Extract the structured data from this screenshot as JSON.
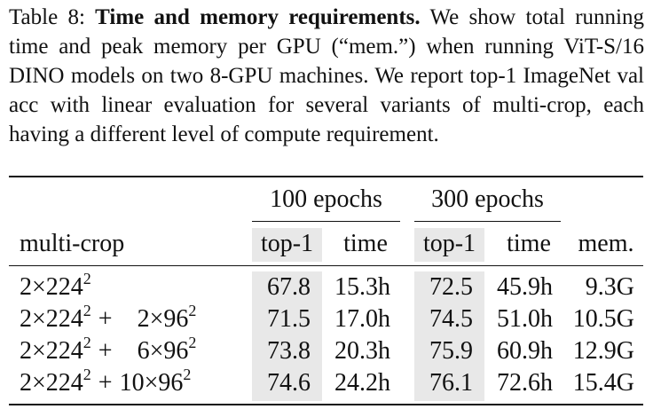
{
  "caption": {
    "label": "Table 8:",
    "title": "Time and memory requirements.",
    "text": "We show total running time and peak memory per GPU (“mem.”) when running ViT-S/16 DINO models on two 8-GPU machines. We report top-1 ImageNet val acc with linear evaluation for several variants of multi-crop, each having a different level of compute requirement."
  },
  "table": {
    "group_headers": [
      "100 epochs",
      "300 epochs"
    ],
    "row_header": "multi-crop",
    "columns": [
      "top-1",
      "time",
      "top-1",
      "time",
      "mem."
    ],
    "rows": [
      {
        "label": {
          "a_mult": "2",
          "a_res": "224",
          "exp": "2",
          "plus": "",
          "b_mult": "",
          "b_res": "",
          "b_exp": ""
        },
        "cells": [
          "67.8",
          "15.3h",
          "72.5",
          "45.9h",
          "9.3G"
        ]
      },
      {
        "label": {
          "a_mult": "2",
          "a_res": "224",
          "exp": "2",
          "plus": "+",
          "b_mult": "2",
          "b_res": "96",
          "b_exp": "2"
        },
        "cells": [
          "71.5",
          "17.0h",
          "74.5",
          "51.0h",
          "10.5G"
        ]
      },
      {
        "label": {
          "a_mult": "2",
          "a_res": "224",
          "exp": "2",
          "plus": "+",
          "b_mult": "6",
          "b_res": "96",
          "b_exp": "2"
        },
        "cells": [
          "73.8",
          "20.3h",
          "75.9",
          "60.9h",
          "12.9G"
        ]
      },
      {
        "label": {
          "a_mult": "2",
          "a_res": "224",
          "exp": "2",
          "plus": "+",
          "b_mult": "10",
          "b_res": "96",
          "b_exp": "2"
        },
        "cells": [
          "74.6",
          "24.2h",
          "76.1",
          "72.6h",
          "15.4G"
        ]
      }
    ],
    "times_symbol": "×",
    "highlight_color": "#e8e8e8"
  }
}
